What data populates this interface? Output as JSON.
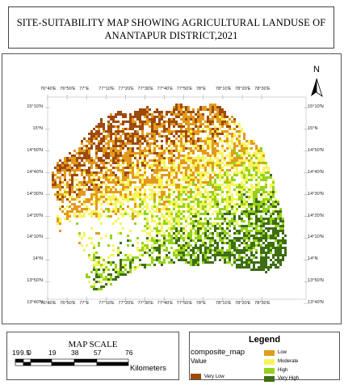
{
  "title": {
    "line1": "SITE-SUITABILITY MAP SHOWING AGRICULTURAL LANDUSE OF",
    "line2": "ANANTAPUR DISTRICT,2021"
  },
  "north_arrow": {
    "label": "N",
    "icon": "north-arrow-icon"
  },
  "graticule": {
    "longitude_labels": [
      "76°40'E",
      "76°50'E",
      "77°E",
      "77°10'E",
      "77°20'E",
      "77°30'E",
      "77°40'E",
      "77°50'E",
      "78°E",
      "78°10'E",
      "78°20'E",
      "78°30'E"
    ],
    "latitude_labels": [
      "15°10'N",
      "15°N",
      "14°50'N",
      "14°40'N",
      "14°30'N",
      "14°20'N",
      "14°10'N",
      "14°N",
      "13°50'N",
      "13°40'N"
    ]
  },
  "scale": {
    "heading": "MAP SCALE",
    "tick_labels": [
      "19",
      "9.5",
      "0",
      "19",
      "38",
      "57",
      "76"
    ],
    "unit": "Kilometers"
  },
  "legend": {
    "heading": "Legend",
    "layer_name": "composite_map",
    "field_name": "Value",
    "classes": [
      {
        "label": "Very Low",
        "color": "#9e4a0c"
      },
      {
        "label": "Low",
        "color": "#e39a1b"
      },
      {
        "label": "Moderate",
        "color": "#f7f55c"
      },
      {
        "label": "High",
        "color": "#96d21c"
      },
      {
        "label": "Very High",
        "color": "#3e6e12"
      }
    ]
  },
  "map_region_colors": {
    "very_low": "#9e4a0c",
    "low": "#e39a1b",
    "moderate": "#f7f55c",
    "high": "#96d21c",
    "very_high": "#3e6e12"
  }
}
